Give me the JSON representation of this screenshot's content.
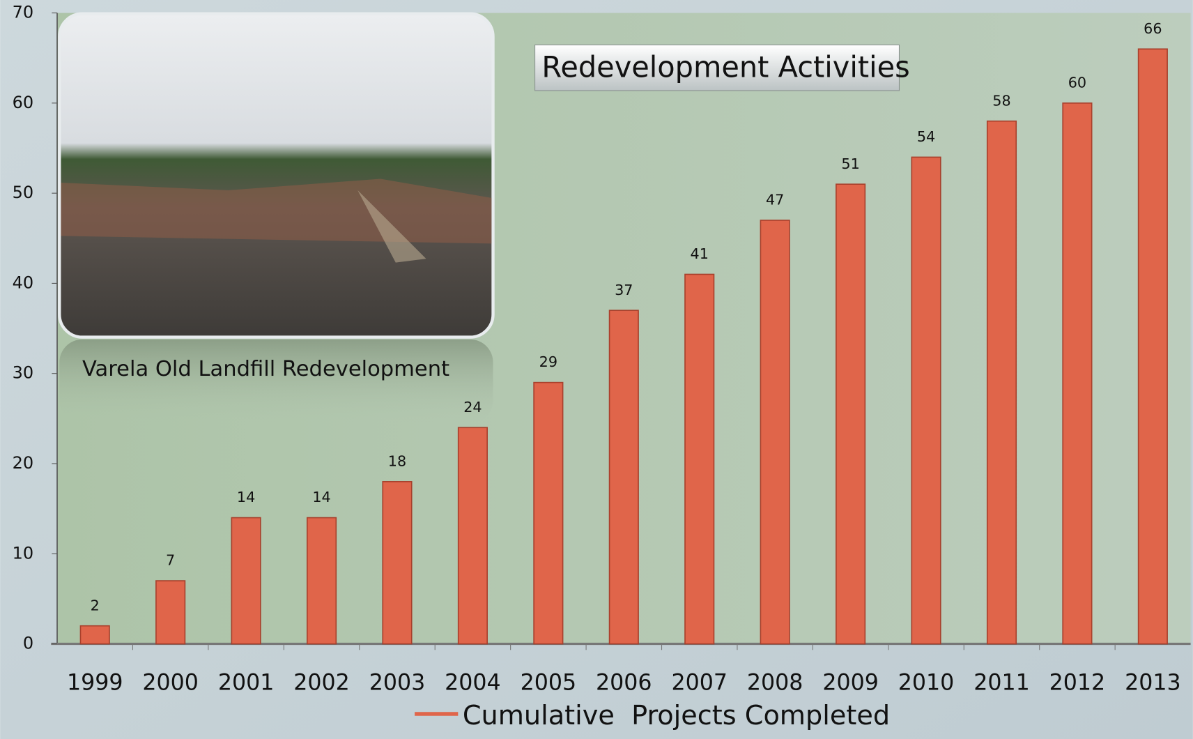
{
  "chart_data": {
    "type": "bar",
    "title": "Redevelopment Activities",
    "annotation": "Varela Old Landfill Redevelopment",
    "categories": [
      "1999",
      "2000",
      "2001",
      "2002",
      "2003",
      "2004",
      "2005",
      "2006",
      "2007",
      "2008",
      "2009",
      "2010",
      "2011",
      "2012",
      "2013"
    ],
    "series": [
      {
        "name": "Cumulative  Projects Completed",
        "color": "#e0654a",
        "values": [
          2,
          7,
          14,
          14,
          18,
          24,
          29,
          37,
          41,
          47,
          51,
          54,
          58,
          60,
          66
        ]
      }
    ],
    "ylim": [
      0,
      70
    ],
    "yticks": [
      0,
      10,
      20,
      30,
      40,
      50,
      60,
      70
    ],
    "legend": "bottom",
    "grid": false
  }
}
